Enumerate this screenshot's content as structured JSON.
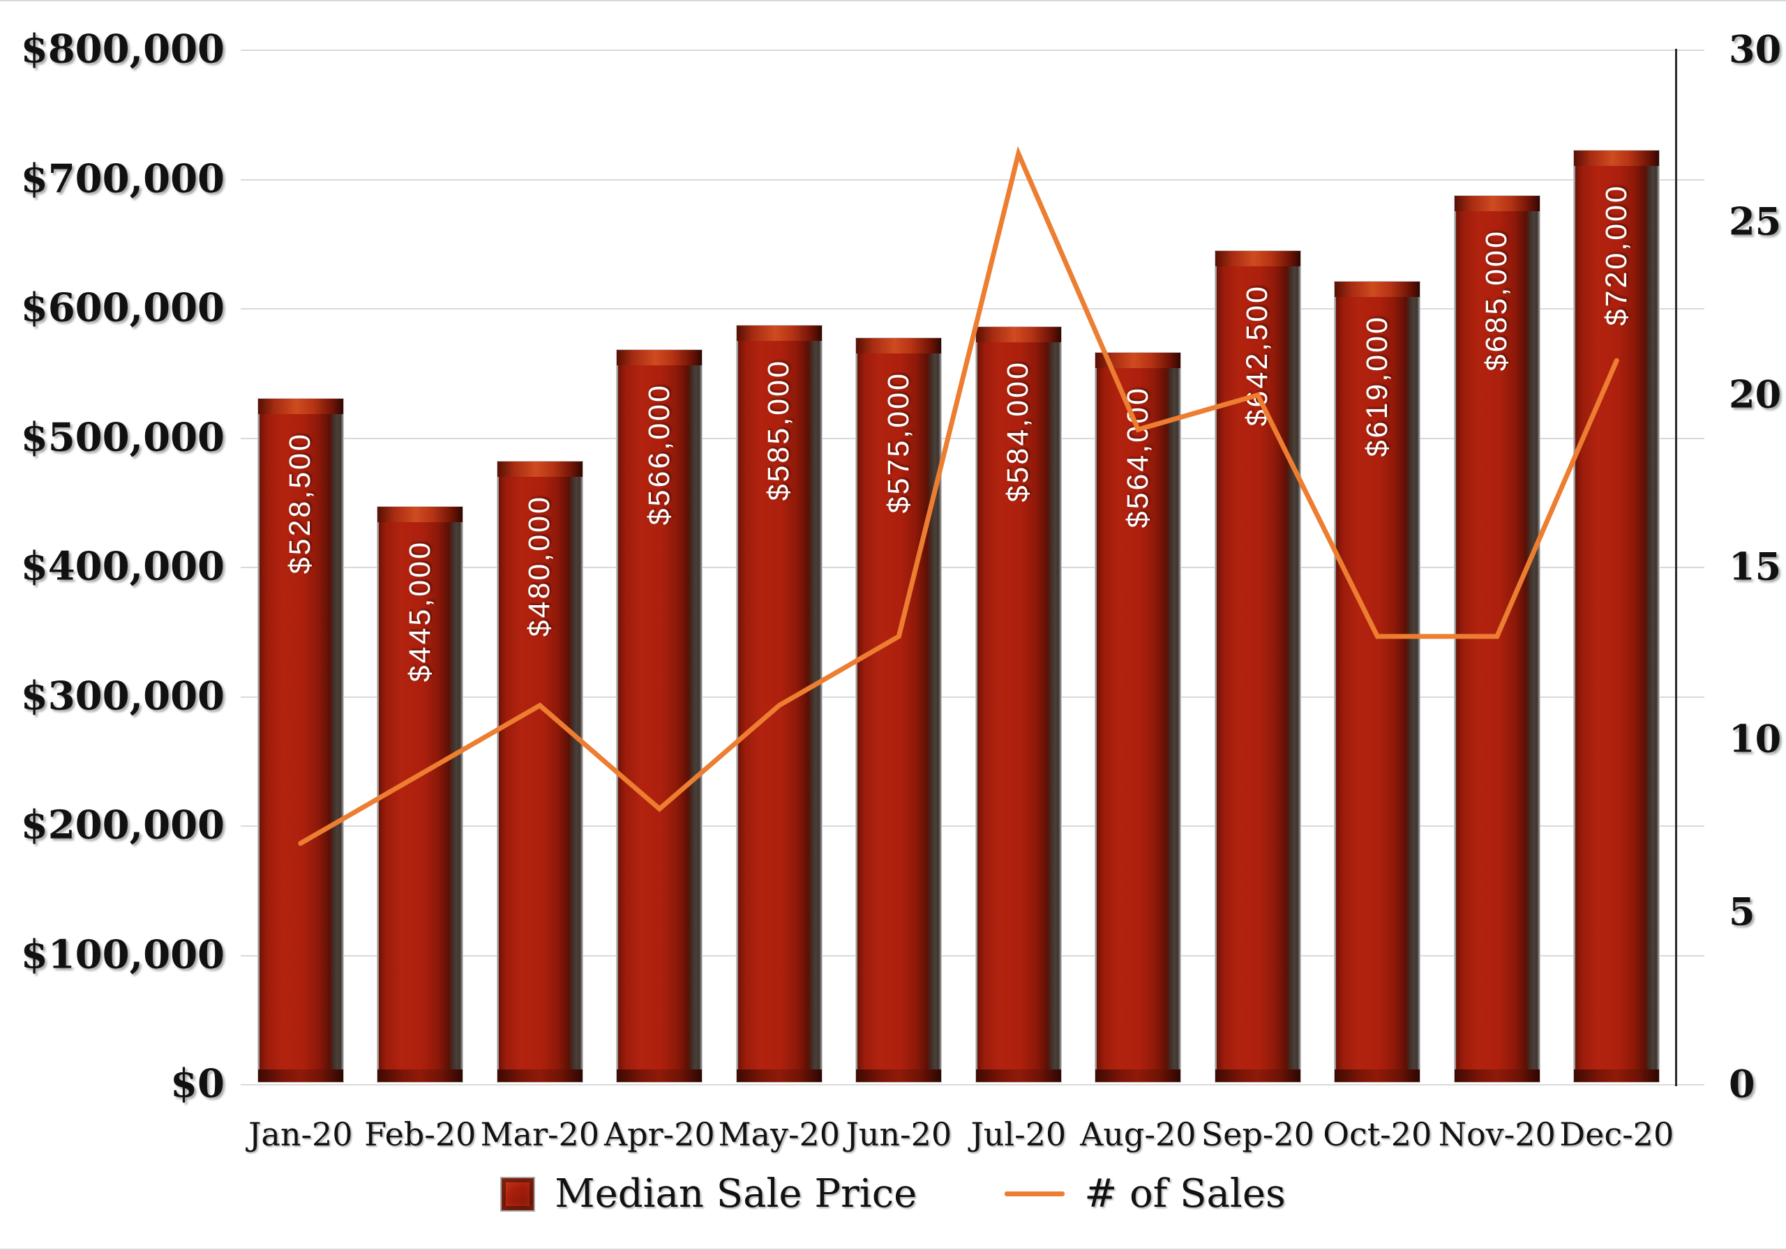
{
  "chart_data": {
    "type": "combo",
    "categories": [
      "Jan-20",
      "Feb-20",
      "Mar-20",
      "Apr-20",
      "May-20",
      "Jun-20",
      "Jul-20",
      "Aug-20",
      "Sep-20",
      "Oct-20",
      "Nov-20",
      "Dec-20"
    ],
    "series": [
      {
        "name": "Median Sale Price",
        "type": "bar",
        "axis": "left",
        "color": "#A91D0B",
        "values": [
          528500,
          445000,
          480000,
          566000,
          585000,
          575000,
          584000,
          564000,
          642500,
          619000,
          685000,
          720000
        ],
        "labels": [
          "$528,500",
          "$445,000",
          "$480,000",
          "$566,000",
          "$585,000",
          "$575,000",
          "$584,000",
          "$564,000",
          "$642,500",
          "$619,000",
          "$685,000",
          "$720,000"
        ]
      },
      {
        "name": "# of Sales",
        "type": "line",
        "axis": "right",
        "color": "#ED7D31",
        "values": [
          7,
          9,
          11,
          8,
          11,
          13,
          27,
          19,
          20,
          13,
          13,
          21
        ]
      }
    ],
    "left_axis": {
      "min": 0,
      "max": 800000,
      "step": 100000,
      "tick_labels_top_to_bottom": [
        "$800,000",
        "$700,000",
        "$600,000",
        "$500,000",
        "$400,000",
        "$300,000",
        "$200,000",
        "$100,000",
        "$0"
      ]
    },
    "right_axis": {
      "min": 0,
      "max": 30,
      "step": 5,
      "tick_labels_top_to_bottom": [
        "30",
        "25",
        "20",
        "15",
        "10",
        "5",
        "0"
      ]
    },
    "grid": true,
    "legend_position": "bottom",
    "title": "",
    "xlabel": "",
    "ylabel": ""
  },
  "legend": {
    "bar_label": "Median Sale Price",
    "line_label": "# of Sales"
  },
  "colors": {
    "bar_face": "#B2230F",
    "bar_dark_edge": "#3F0A03",
    "bar_top_bevel": "#CF4B20",
    "bar_outline": "#C9C9C9",
    "line": "#ED7D31",
    "gridline": "#D9D9D9",
    "axis_line": "#2B2B2B",
    "text": "#111111",
    "bar_label_text": "#FFFFFF",
    "background": "#FFFFFF"
  }
}
